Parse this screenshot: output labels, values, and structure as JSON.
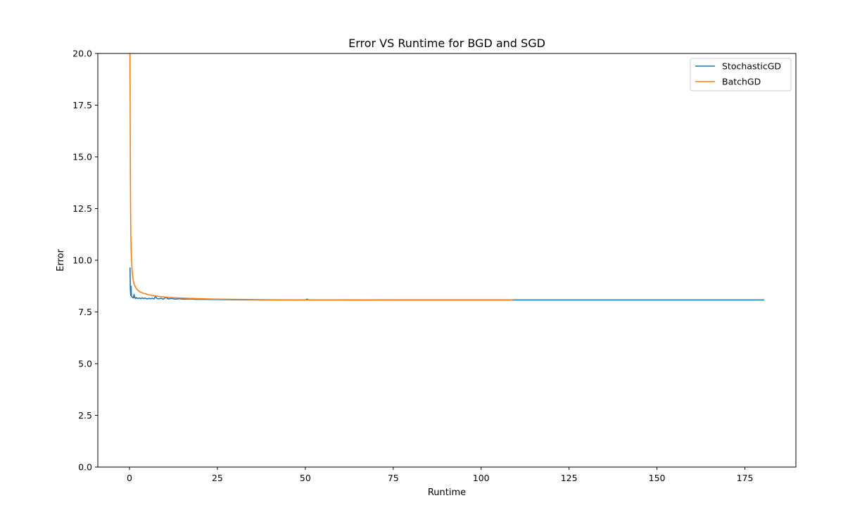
{
  "chart_data": {
    "type": "line",
    "title": "Error VS Runtime for BGD and SGD",
    "xlabel": "Runtime",
    "ylabel": "Error",
    "xlim": [
      -9,
      189.5
    ],
    "ylim": [
      0,
      20
    ],
    "xticks": [
      0,
      25,
      50,
      75,
      100,
      125,
      150,
      175
    ],
    "yticks": [
      0.0,
      2.5,
      5.0,
      7.5,
      10.0,
      12.5,
      15.0,
      17.5,
      20.0
    ],
    "ytick_labels": [
      "0.0",
      "2.5",
      "5.0",
      "7.5",
      "10.0",
      "12.5",
      "15.0",
      "17.5",
      "20.0"
    ],
    "xtick_labels": [
      "0",
      "25",
      "50",
      "75",
      "100",
      "125",
      "150",
      "175"
    ],
    "grid": false,
    "legend_position": "top-right",
    "series": [
      {
        "name": "StochasticGD",
        "color": "#1f77b4",
        "x": [
          0.15,
          0.25,
          0.35,
          0.45,
          0.55,
          0.65,
          0.75,
          0.85,
          0.95,
          1.1,
          1.3,
          1.5,
          1.7,
          1.9,
          2.1,
          2.4,
          2.8,
          3.2,
          3.6,
          4.0,
          4.5,
          5.0,
          5.5,
          6.0,
          6.5,
          7.0,
          7.4,
          7.8,
          8.3,
          9.0,
          9.6,
          10.3,
          11.0,
          12.0,
          13.0,
          14.0,
          15.5,
          17.0,
          19.0,
          21.0,
          25.0,
          30.0,
          40.0,
          50.0,
          50.5,
          51.0,
          60.0,
          75.0,
          100.0,
          125.0,
          150.0,
          175.0,
          180.5
        ],
        "y": [
          9.65,
          8.6,
          8.3,
          8.75,
          8.3,
          8.25,
          8.22,
          8.2,
          8.19,
          8.18,
          8.35,
          8.19,
          8.15,
          8.2,
          8.17,
          8.15,
          8.18,
          8.14,
          8.18,
          8.15,
          8.17,
          8.13,
          8.16,
          8.14,
          8.16,
          8.13,
          8.25,
          8.15,
          8.14,
          8.16,
          8.12,
          8.2,
          8.13,
          8.15,
          8.12,
          8.14,
          8.12,
          8.13,
          8.11,
          8.11,
          8.1,
          8.09,
          8.08,
          8.08,
          8.12,
          8.08,
          8.08,
          8.08,
          8.08,
          8.08,
          8.08,
          8.08,
          8.08
        ]
      },
      {
        "name": "BatchGD",
        "color": "#ff7f0e",
        "x": [
          0.15,
          0.2,
          0.25,
          0.3,
          0.35,
          0.4,
          0.5,
          0.6,
          0.8,
          1.0,
          1.3,
          1.7,
          2.2,
          3.0,
          4.0,
          5.0,
          6.5,
          8.0,
          10.0,
          12.5,
          15.0,
          20.0,
          25.0,
          30.0,
          40.0,
          50.0,
          60.0,
          75.0,
          90.0,
          100.0,
          109.0
        ],
        "y": [
          20.0,
          17.0,
          14.5,
          12.8,
          11.8,
          11.0,
          10.3,
          9.9,
          9.4,
          9.1,
          8.85,
          8.7,
          8.58,
          8.47,
          8.4,
          8.35,
          8.3,
          8.26,
          8.22,
          8.19,
          8.17,
          8.14,
          8.12,
          8.11,
          8.09,
          8.08,
          8.08,
          8.07,
          8.07,
          8.07,
          8.07
        ]
      }
    ]
  }
}
